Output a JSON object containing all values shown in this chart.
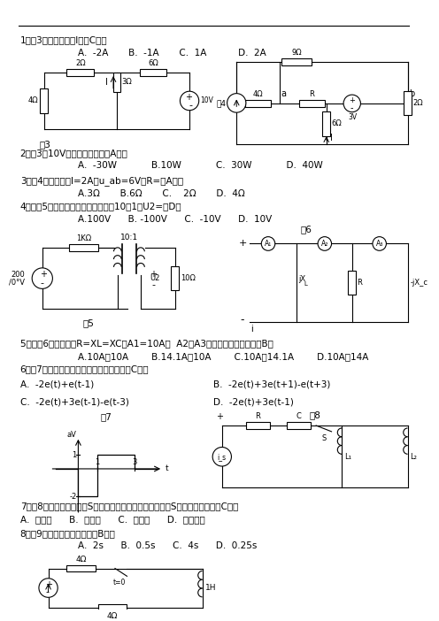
{
  "bg_color": "#ffffff",
  "line_color": "#000000",
  "q1_text": "1、图3中所示的电流I为（C）。",
  "q1_opts": "A.  -2A       B.  -1A       C.  1A           D.  2A",
  "q2_text": "2、图3中10V电压源的功率是（A）。",
  "q2_opts": "A.  -30W            B.10W            C.  30W            D.  40W",
  "q3_text": "3、图4所示，已知I=2A，u_ab=6V，R=（A）。",
  "q3_opts": "A.3Ω       B.6Ω       C.    2Ω       D.  4Ω",
  "q4_text": "4、如图5所示，理想变压器尽数比为10：1，U2=（D）",
  "q4_opts": "A.100V      B. -100V      C.  -10V      D.  10V",
  "q5_text": "5、如图6所示，已知R=XL=XC，A1=10A，  A2，A3电流表的读数分别为（B）",
  "q5_opts": "A.10A，10A        B.14.1A，10A        C.10A，14.1A        D.10A，14A",
  "q6_text": "6、图7所示电压波形可用阶跃函数表示为（C）。",
  "q6_A": "A.  -2e(t)+e(t-1)",
  "q6_B": "B.  -2e(t)+3e(t+1)-e(t+3)",
  "q6_C": "C.  -2e(t)+3e(t-1)-e(t-3)",
  "q6_D": "D.  -2e(t)+3e(t-1)",
  "q7_text": "7、图8所示电路中，开关S断开时，电路呈电阵性。初开关S闭合时，电路呈（C）。",
  "q7_opts": "A.  电阵性      B.  电感性      C.  电容性      D.  谐振状态",
  "q8_text": "8、图9示电路的时间常数为（B）。",
  "q8_opts": "A.  2s      B.  0.5s      C.  4s      D.  0.25s"
}
